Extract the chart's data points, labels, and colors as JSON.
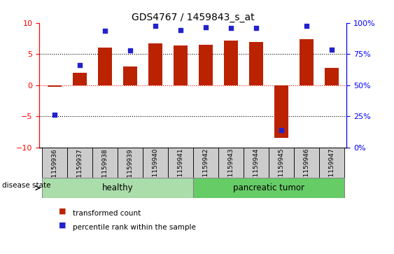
{
  "title": "GDS4767 / 1459843_s_at",
  "samples": [
    "GSM1159936",
    "GSM1159937",
    "GSM1159938",
    "GSM1159939",
    "GSM1159940",
    "GSM1159941",
    "GSM1159942",
    "GSM1159943",
    "GSM1159944",
    "GSM1159945",
    "GSM1159946",
    "GSM1159947"
  ],
  "bar_values": [
    -0.3,
    2.0,
    6.0,
    3.0,
    6.7,
    6.4,
    6.5,
    7.2,
    6.9,
    -8.5,
    7.4,
    2.8
  ],
  "dot_values": [
    -4.8,
    3.2,
    8.7,
    5.6,
    9.5,
    8.8,
    9.3,
    9.2,
    9.2,
    -7.2,
    9.5,
    5.7
  ],
  "bar_color": "#bb2200",
  "dot_color": "#2222cc",
  "healthy_count": 6,
  "tumor_count": 6,
  "healthy_label": "healthy",
  "tumor_label": "pancreatic tumor",
  "disease_state_label": "disease state",
  "legend_bar": "transformed count",
  "legend_dot": "percentile rank within the sample",
  "ylim_left": [
    -10,
    10
  ],
  "yticks_left": [
    -10,
    -5,
    0,
    5,
    10
  ],
  "ylim_right": [
    0,
    100
  ],
  "yticks_right": [
    0,
    25,
    50,
    75,
    100
  ],
  "hlines_dotted": [
    -5,
    5
  ],
  "hline_red": 0,
  "healthy_bg": "#aaddaa",
  "tumor_bg": "#66cc66",
  "label_bg": "#cccccc"
}
